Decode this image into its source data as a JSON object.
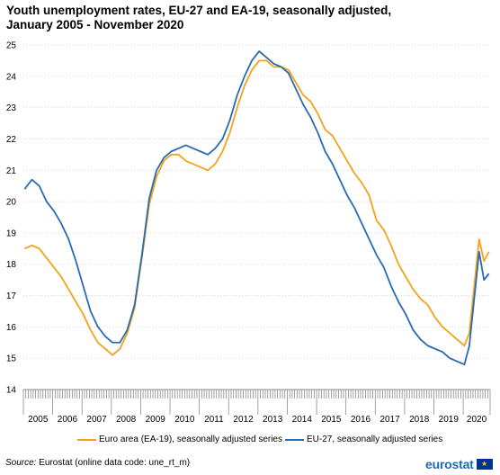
{
  "page": {
    "title_line1": "Youth unemployment rates, EU-27 and EA-19, seasonally adjusted,",
    "title_line2": "January 2005 - November 2020",
    "source_label": "Source:",
    "source_text": "Eurostat (online data code: une_rt_m)",
    "logo_text": "eurostat",
    "logo_flag": "★"
  },
  "colors": {
    "ea19": "#f4a21a",
    "eu27": "#2a6ab2",
    "grid": "#d9d9d9",
    "axis": "#8c8c8c"
  },
  "chart_data": {
    "type": "line",
    "title": "Youth unemployment rates, EU-27 and EA-19, seasonally adjusted, January 2005 - November 2020",
    "xlabel": "",
    "ylabel": "",
    "ylim": [
      14,
      25
    ],
    "yticks": [
      14,
      15,
      16,
      17,
      18,
      19,
      20,
      21,
      22,
      23,
      24,
      25
    ],
    "grid": "horizontal dotted",
    "legend_position": "bottom",
    "x_categories": [
      "2005",
      "2006",
      "2007",
      "2008",
      "2009",
      "2010",
      "2011",
      "2012",
      "2013",
      "2014",
      "2015",
      "2016",
      "2017",
      "2018",
      "2019",
      "2020"
    ],
    "x_start": "2005-01",
    "x_end": "2020-11",
    "series": [
      {
        "name": "Euro area (EA-19), seasonally adjusted series",
        "points": [
          [
            "2005-01",
            18.5
          ],
          [
            "2005-04",
            18.6
          ],
          [
            "2005-07",
            18.5
          ],
          [
            "2005-10",
            18.2
          ],
          [
            "2006-01",
            17.9
          ],
          [
            "2006-04",
            17.6
          ],
          [
            "2006-07",
            17.2
          ],
          [
            "2006-10",
            16.8
          ],
          [
            "2007-01",
            16.4
          ],
          [
            "2007-04",
            15.9
          ],
          [
            "2007-07",
            15.5
          ],
          [
            "2007-10",
            15.3
          ],
          [
            "2008-01",
            15.1
          ],
          [
            "2008-04",
            15.3
          ],
          [
            "2008-07",
            15.8
          ],
          [
            "2008-10",
            16.6
          ],
          [
            "2009-01",
            18.2
          ],
          [
            "2009-04",
            19.9
          ],
          [
            "2009-07",
            20.8
          ],
          [
            "2009-10",
            21.3
          ],
          [
            "2010-01",
            21.5
          ],
          [
            "2010-04",
            21.5
          ],
          [
            "2010-07",
            21.3
          ],
          [
            "2010-10",
            21.2
          ],
          [
            "2011-01",
            21.1
          ],
          [
            "2011-04",
            21.0
          ],
          [
            "2011-07",
            21.2
          ],
          [
            "2011-10",
            21.6
          ],
          [
            "2012-01",
            22.2
          ],
          [
            "2012-04",
            23.0
          ],
          [
            "2012-07",
            23.7
          ],
          [
            "2012-10",
            24.2
          ],
          [
            "2013-01",
            24.5
          ],
          [
            "2013-04",
            24.5
          ],
          [
            "2013-07",
            24.3
          ],
          [
            "2013-10",
            24.3
          ],
          [
            "2014-01",
            24.2
          ],
          [
            "2014-04",
            23.8
          ],
          [
            "2014-07",
            23.4
          ],
          [
            "2014-10",
            23.2
          ],
          [
            "2015-01",
            22.8
          ],
          [
            "2015-04",
            22.3
          ],
          [
            "2015-07",
            22.1
          ],
          [
            "2015-10",
            21.7
          ],
          [
            "2016-01",
            21.3
          ],
          [
            "2016-04",
            20.9
          ],
          [
            "2016-07",
            20.6
          ],
          [
            "2016-10",
            20.2
          ],
          [
            "2017-01",
            19.4
          ],
          [
            "2017-04",
            19.1
          ],
          [
            "2017-07",
            18.6
          ],
          [
            "2017-10",
            18.0
          ],
          [
            "2018-01",
            17.6
          ],
          [
            "2018-04",
            17.2
          ],
          [
            "2018-07",
            16.9
          ],
          [
            "2018-10",
            16.7
          ],
          [
            "2019-01",
            16.3
          ],
          [
            "2019-04",
            16.0
          ],
          [
            "2019-07",
            15.8
          ],
          [
            "2019-10",
            15.6
          ],
          [
            "2020-01",
            15.4
          ],
          [
            "2020-03",
            15.8
          ],
          [
            "2020-05",
            17.3
          ],
          [
            "2020-07",
            18.8
          ],
          [
            "2020-09",
            18.1
          ],
          [
            "2020-11",
            18.4
          ]
        ]
      },
      {
        "name": "EU-27, seasonally adjusted series",
        "points": [
          [
            "2005-01",
            20.4
          ],
          [
            "2005-04",
            20.7
          ],
          [
            "2005-07",
            20.5
          ],
          [
            "2005-10",
            20.0
          ],
          [
            "2006-01",
            19.7
          ],
          [
            "2006-04",
            19.3
          ],
          [
            "2006-07",
            18.8
          ],
          [
            "2006-10",
            18.1
          ],
          [
            "2007-01",
            17.3
          ],
          [
            "2007-04",
            16.5
          ],
          [
            "2007-07",
            16.0
          ],
          [
            "2007-10",
            15.7
          ],
          [
            "2008-01",
            15.5
          ],
          [
            "2008-04",
            15.5
          ],
          [
            "2008-07",
            15.9
          ],
          [
            "2008-10",
            16.7
          ],
          [
            "2009-01",
            18.3
          ],
          [
            "2009-04",
            20.1
          ],
          [
            "2009-07",
            21.0
          ],
          [
            "2009-10",
            21.4
          ],
          [
            "2010-01",
            21.6
          ],
          [
            "2010-04",
            21.7
          ],
          [
            "2010-07",
            21.8
          ],
          [
            "2010-10",
            21.7
          ],
          [
            "2011-01",
            21.6
          ],
          [
            "2011-04",
            21.5
          ],
          [
            "2011-07",
            21.7
          ],
          [
            "2011-10",
            22.0
          ],
          [
            "2012-01",
            22.6
          ],
          [
            "2012-04",
            23.4
          ],
          [
            "2012-07",
            24.0
          ],
          [
            "2012-10",
            24.5
          ],
          [
            "2013-01",
            24.8
          ],
          [
            "2013-04",
            24.6
          ],
          [
            "2013-07",
            24.4
          ],
          [
            "2013-10",
            24.3
          ],
          [
            "2014-01",
            24.1
          ],
          [
            "2014-04",
            23.6
          ],
          [
            "2014-07",
            23.1
          ],
          [
            "2014-10",
            22.7
          ],
          [
            "2015-01",
            22.2
          ],
          [
            "2015-04",
            21.6
          ],
          [
            "2015-07",
            21.2
          ],
          [
            "2015-10",
            20.7
          ],
          [
            "2016-01",
            20.2
          ],
          [
            "2016-04",
            19.8
          ],
          [
            "2016-07",
            19.3
          ],
          [
            "2016-10",
            18.8
          ],
          [
            "2017-01",
            18.3
          ],
          [
            "2017-04",
            17.9
          ],
          [
            "2017-07",
            17.3
          ],
          [
            "2017-10",
            16.8
          ],
          [
            "2018-01",
            16.4
          ],
          [
            "2018-04",
            15.9
          ],
          [
            "2018-07",
            15.6
          ],
          [
            "2018-10",
            15.4
          ],
          [
            "2019-01",
            15.3
          ],
          [
            "2019-04",
            15.2
          ],
          [
            "2019-07",
            15.0
          ],
          [
            "2019-10",
            14.9
          ],
          [
            "2020-01",
            14.8
          ],
          [
            "2020-03",
            15.4
          ],
          [
            "2020-05",
            16.9
          ],
          [
            "2020-07",
            18.4
          ],
          [
            "2020-09",
            17.5
          ],
          [
            "2020-11",
            17.7
          ]
        ]
      }
    ]
  }
}
